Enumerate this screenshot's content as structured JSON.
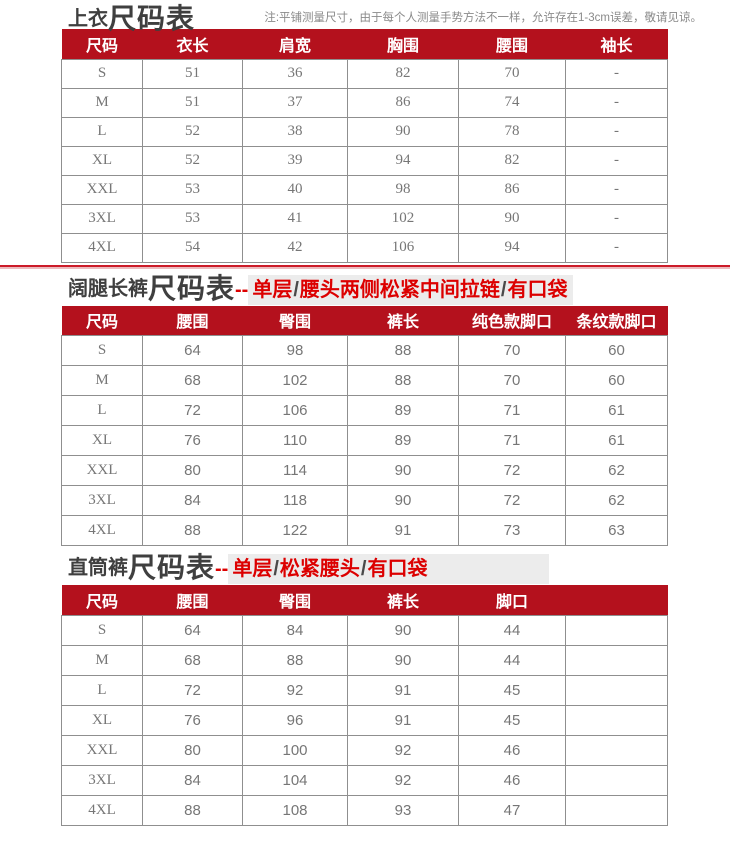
{
  "note": "注:平铺测量尺寸，由于每个人测量手势方法不一样，允许存在1-3cm误差，敬请见谅。",
  "dashes": "--",
  "slash": "/",
  "colors": {
    "header_red": "#b4111d",
    "title_red": "#dc0000",
    "divider_red": "#cc1b28",
    "highlight_bg": "#ececec",
    "title_dark": "#3f3f3f",
    "data_gray": "#767676"
  },
  "tables": [
    {
      "title_small": "上衣",
      "title_large": "尺码表",
      "headers": [
        "尺码",
        "衣长",
        "肩宽",
        "胸围",
        "腰围",
        "袖长"
      ],
      "rows": [
        [
          "S",
          "51",
          "36",
          "82",
          "70",
          "-"
        ],
        [
          "M",
          "51",
          "37",
          "86",
          "74",
          "-"
        ],
        [
          "L",
          "52",
          "38",
          "90",
          "78",
          "-"
        ],
        [
          "XL",
          "52",
          "39",
          "94",
          "82",
          "-"
        ],
        [
          "XXL",
          "53",
          "40",
          "98",
          "86",
          "-"
        ],
        [
          "3XL",
          "53",
          "41",
          "102",
          "90",
          "-"
        ],
        [
          "4XL",
          "54",
          "42",
          "106",
          "94",
          "-"
        ]
      ]
    },
    {
      "title_small": "阔腿长裤",
      "title_large": "尺码表",
      "red_parts": [
        "单层",
        "腰头两侧松紧中间拉链",
        "有口袋"
      ],
      "headers": [
        "尺码",
        "腰围",
        "臀围",
        "裤长",
        "纯色款脚口",
        "条纹款脚口"
      ],
      "rows": [
        [
          "S",
          "64",
          "98",
          "88",
          "70",
          "60"
        ],
        [
          "M",
          "68",
          "102",
          "88",
          "70",
          "60"
        ],
        [
          "L",
          "72",
          "106",
          "89",
          "71",
          "61"
        ],
        [
          "XL",
          "76",
          "110",
          "89",
          "71",
          "61"
        ],
        [
          "XXL",
          "80",
          "114",
          "90",
          "72",
          "62"
        ],
        [
          "3XL",
          "84",
          "118",
          "90",
          "72",
          "62"
        ],
        [
          "4XL",
          "88",
          "122",
          "91",
          "73",
          "63"
        ]
      ]
    },
    {
      "title_small": "直筒裤",
      "title_large": "尺码表",
      "red_parts": [
        "单层",
        "松紧腰头",
        "有口袋"
      ],
      "headers": [
        "尺码",
        "腰围",
        "臀围",
        "裤长",
        "脚口",
        ""
      ],
      "rows": [
        [
          "S",
          "64",
          "84",
          "90",
          "44",
          ""
        ],
        [
          "M",
          "68",
          "88",
          "90",
          "44",
          ""
        ],
        [
          "L",
          "72",
          "92",
          "91",
          "45",
          ""
        ],
        [
          "XL",
          "76",
          "96",
          "91",
          "45",
          ""
        ],
        [
          "XXL",
          "80",
          "100",
          "92",
          "46",
          ""
        ],
        [
          "3XL",
          "84",
          "104",
          "92",
          "46",
          ""
        ],
        [
          "4XL",
          "88",
          "108",
          "93",
          "47",
          ""
        ]
      ]
    }
  ]
}
